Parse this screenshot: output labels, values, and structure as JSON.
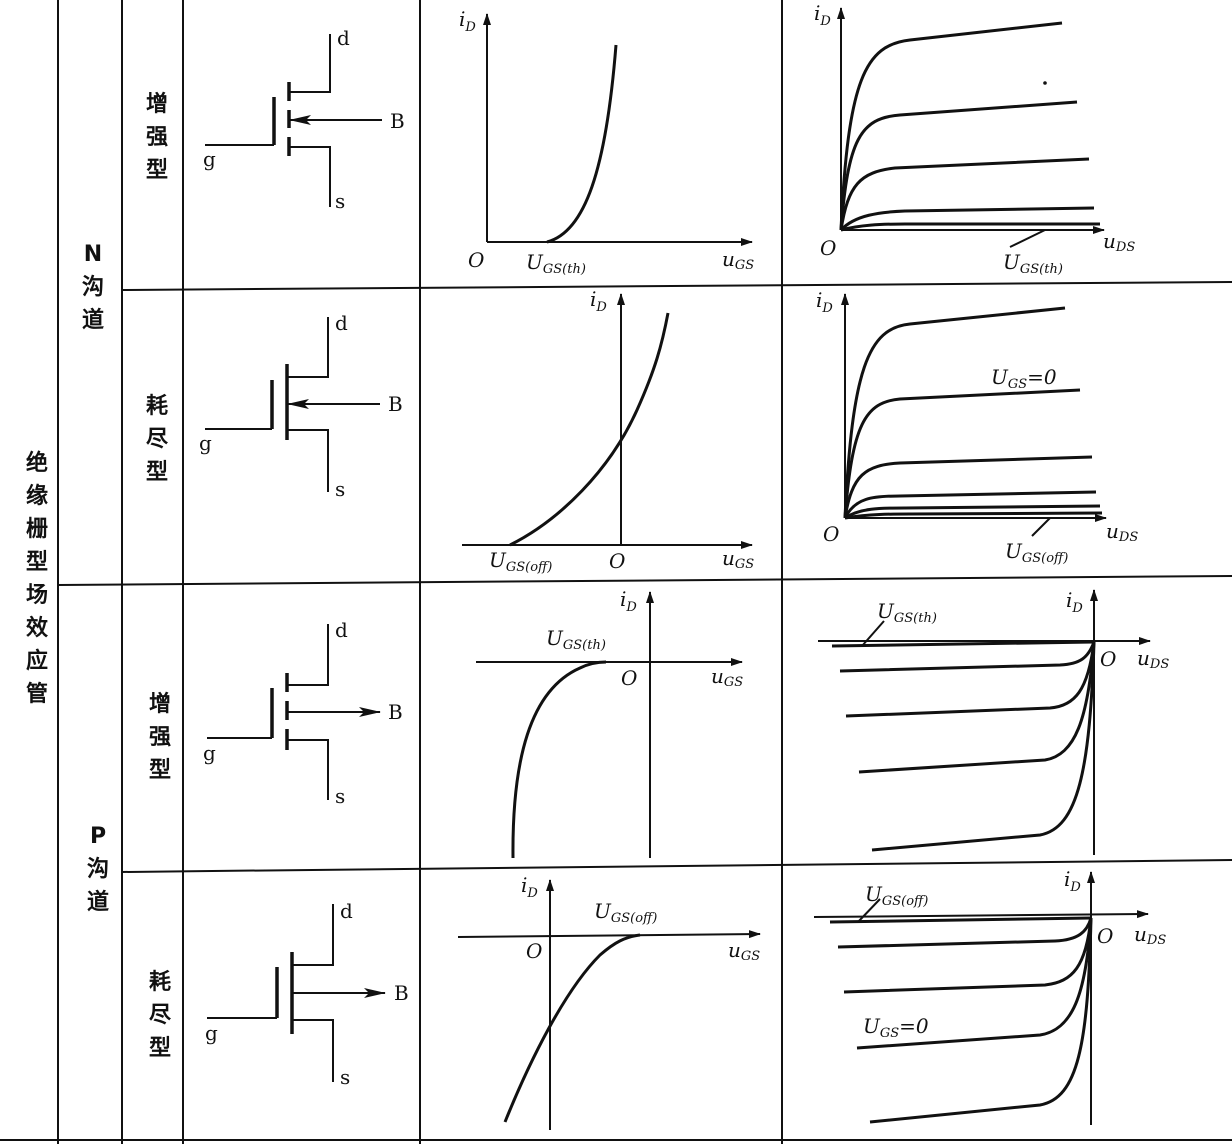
{
  "group_label": "绝缘栅型场效应管",
  "channels": [
    {
      "label": "N沟道"
    },
    {
      "label": "P沟道"
    }
  ],
  "rows": [
    {
      "type_label": "增强型",
      "channel": "N"
    },
    {
      "type_label": "耗尽型",
      "channel": "N"
    },
    {
      "type_label": "增强型",
      "channel": "P"
    },
    {
      "type_label": "耗尽型",
      "channel": "P"
    }
  ],
  "terminals": {
    "drain": "d",
    "gate": "g",
    "source": "s",
    "substrate": "B"
  },
  "axis_text": {
    "iD_i": "i",
    "iD_sub": "D",
    "uGS_u": "u",
    "uGS_sub": "GS",
    "uDS_u": "u",
    "uDS_sub": "DS",
    "origin": "O"
  },
  "params": {
    "U": "U",
    "gs_th": "GS(th)",
    "gs_off": "GS(off)",
    "gs": "GS",
    "eq0": "=0"
  }
}
